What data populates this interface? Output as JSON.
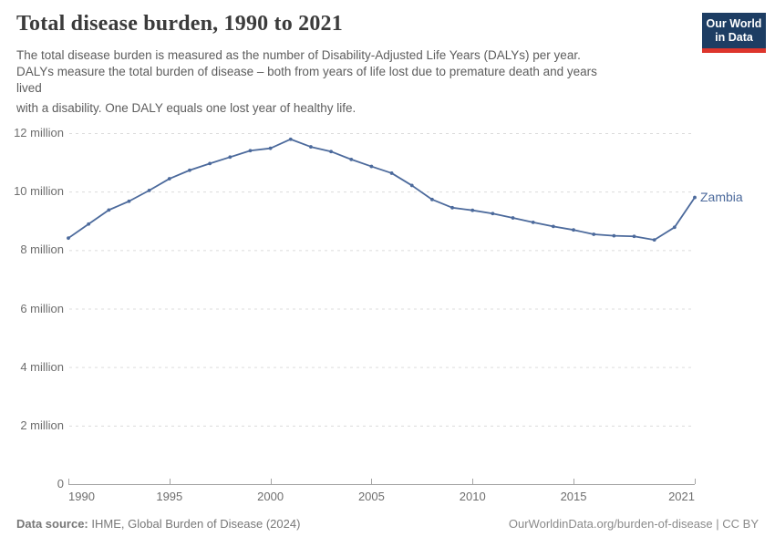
{
  "header": {
    "title": "Total disease burden, 1990 to 2021",
    "subtitle_lines": [
      "The total disease burden is measured as the number of Disability-Adjusted Life Years (DALYs) per year.",
      "DALYs measure the total burden of disease – both from years of life lost due to premature death and years",
      "lived",
      "with a disability. One DALY equals one lost year of healthy life."
    ],
    "logo": {
      "line1": "Our World",
      "line2": "in Data"
    }
  },
  "chart_data": {
    "type": "line",
    "title": "Total disease burden, 1990 to 2021",
    "entity": "Zambia",
    "value_unit": "million DALYs",
    "x": [
      1990,
      1991,
      1992,
      1993,
      1994,
      1995,
      1996,
      1997,
      1998,
      1999,
      2000,
      2001,
      2002,
      2003,
      2004,
      2005,
      2006,
      2007,
      2008,
      2009,
      2010,
      2011,
      2012,
      2013,
      2014,
      2015,
      2016,
      2017,
      2018,
      2019,
      2020,
      2021
    ],
    "series": [
      {
        "name": "Zambia",
        "color": "#4c6a9c",
        "values": [
          8.41,
          8.89,
          9.37,
          9.67,
          10.04,
          10.44,
          10.73,
          10.96,
          11.18,
          11.4,
          11.48,
          11.79,
          11.53,
          11.37,
          11.1,
          10.86,
          10.63,
          10.21,
          9.73,
          9.45,
          9.36,
          9.25,
          9.1,
          8.95,
          8.81,
          8.69,
          8.54,
          8.49,
          8.47,
          8.35,
          8.78,
          9.8
        ]
      }
    ],
    "ylim": [
      0,
      12
    ],
    "y_axis": {
      "ticks": [
        0,
        2,
        4,
        6,
        8,
        10,
        12
      ],
      "labels": [
        "0",
        "2 million",
        "4 million",
        "6 million",
        "8 million",
        "10 million",
        "12 million"
      ]
    },
    "x_axis": {
      "ticks": [
        1990,
        1995,
        2000,
        2005,
        2010,
        2015,
        2021
      ]
    },
    "grid": true,
    "legend": "end-of-line-label",
    "colors": {
      "line": "#4c6a9c",
      "grid": "#dcdcdc",
      "axis": "#a5a5a5"
    }
  },
  "footer": {
    "datasource_label": "Data source:",
    "datasource_value": " IHME, Global Burden of Disease (2024)",
    "link": "OurWorldinData.org/burden-of-disease",
    "separator": " | ",
    "license": "CC BY"
  }
}
